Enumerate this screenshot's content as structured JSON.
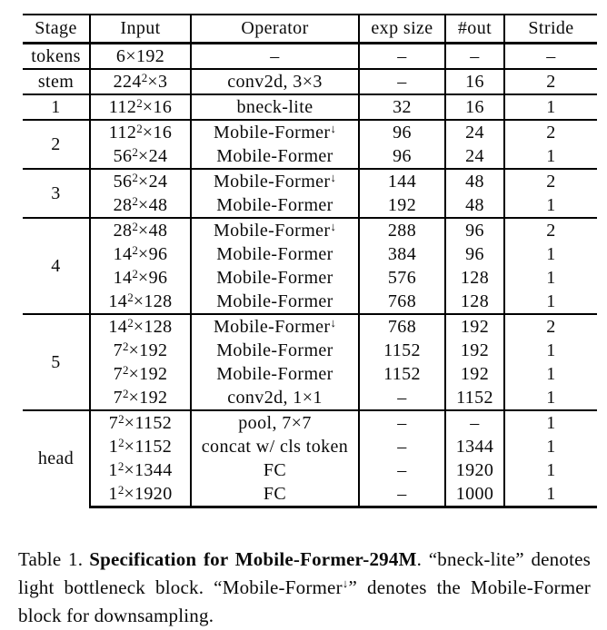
{
  "page": {
    "background_color": "#ffffff",
    "text_color": "#0a0a0a"
  },
  "table": {
    "headers": [
      "Stage",
      "Input",
      "Operator",
      "exp size",
      "#out",
      "Stride"
    ],
    "groups": [
      {
        "stage": "tokens",
        "rows": [
          {
            "in_base": "6×192",
            "op": "–",
            "exp": "–",
            "out": "–",
            "stride": "–"
          }
        ]
      },
      {
        "stage": "stem",
        "rows": [
          {
            "in_base": "224",
            "in_sup": "2",
            "in_rest": "×3",
            "op": "conv2d, 3×3",
            "exp": "–",
            "out": "16",
            "stride": "2"
          }
        ]
      },
      {
        "stage": "1",
        "rows": [
          {
            "in_base": "112",
            "in_sup": "2",
            "in_rest": "×16",
            "op": "bneck-lite",
            "exp": "32",
            "out": "16",
            "stride": "1"
          }
        ]
      },
      {
        "stage": "2",
        "rows": [
          {
            "in_base": "112",
            "in_sup": "2",
            "in_rest": "×16",
            "op": "Mobile-Former",
            "op_sup": "↓",
            "exp": "96",
            "out": "24",
            "stride": "2"
          },
          {
            "in_base": "56",
            "in_sup": "2",
            "in_rest": "×24",
            "op": "Mobile-Former",
            "exp": "96",
            "out": "24",
            "stride": "1"
          }
        ]
      },
      {
        "stage": "3",
        "rows": [
          {
            "in_base": "56",
            "in_sup": "2",
            "in_rest": "×24",
            "op": "Mobile-Former",
            "op_sup": "↓",
            "exp": "144",
            "out": "48",
            "stride": "2"
          },
          {
            "in_base": "28",
            "in_sup": "2",
            "in_rest": "×48",
            "op": "Mobile-Former",
            "exp": "192",
            "out": "48",
            "stride": "1"
          }
        ]
      },
      {
        "stage": "4",
        "rows": [
          {
            "in_base": "28",
            "in_sup": "2",
            "in_rest": "×48",
            "op": "Mobile-Former",
            "op_sup": "↓",
            "exp": "288",
            "out": "96",
            "stride": "2"
          },
          {
            "in_base": "14",
            "in_sup": "2",
            "in_rest": "×96",
            "op": "Mobile-Former",
            "exp": "384",
            "out": "96",
            "stride": "1"
          },
          {
            "in_base": "14",
            "in_sup": "2",
            "in_rest": "×96",
            "op": "Mobile-Former",
            "exp": "576",
            "out": "128",
            "stride": "1"
          },
          {
            "in_base": "14",
            "in_sup": "2",
            "in_rest": "×128",
            "op": "Mobile-Former",
            "exp": "768",
            "out": "128",
            "stride": "1"
          }
        ]
      },
      {
        "stage": "5",
        "rows": [
          {
            "in_base": "14",
            "in_sup": "2",
            "in_rest": "×128",
            "op": "Mobile-Former",
            "op_sup": "↓",
            "exp": "768",
            "out": "192",
            "stride": "2"
          },
          {
            "in_base": "7",
            "in_sup": "2",
            "in_rest": "×192",
            "op": "Mobile-Former",
            "exp": "1152",
            "out": "192",
            "stride": "1"
          },
          {
            "in_base": "7",
            "in_sup": "2",
            "in_rest": "×192",
            "op": "Mobile-Former",
            "exp": "1152",
            "out": "192",
            "stride": "1"
          },
          {
            "in_base": "7",
            "in_sup": "2",
            "in_rest": "×192",
            "op": "conv2d, 1×1",
            "exp": "–",
            "out": "1152",
            "stride": "1"
          }
        ]
      },
      {
        "stage": "head",
        "rows": [
          {
            "in_base": "7",
            "in_sup": "2",
            "in_rest": "×1152",
            "op": "pool, 7×7",
            "exp": "–",
            "out": "–",
            "stride": "1"
          },
          {
            "in_base": "1",
            "in_sup": "2",
            "in_rest": "×1152",
            "op": "concat w/ cls token",
            "exp": "–",
            "out": "1344",
            "stride": "1"
          },
          {
            "in_base": "1",
            "in_sup": "2",
            "in_rest": "×1344",
            "op": "FC",
            "exp": "–",
            "out": "1920",
            "stride": "1"
          },
          {
            "in_base": "1",
            "in_sup": "2",
            "in_rest": "×1920",
            "op": "FC",
            "exp": "–",
            "out": "1000",
            "stride": "1"
          }
        ]
      }
    ]
  },
  "caption": {
    "label": "Table 1.",
    "title": "Specification for Mobile-Former-294M",
    "mid": ". “bneck-lite” denotes light bottleneck block. “Mobile-Former",
    "arrow": "↓",
    "end": "” denotes the Mobile-Former block for downsampling."
  }
}
